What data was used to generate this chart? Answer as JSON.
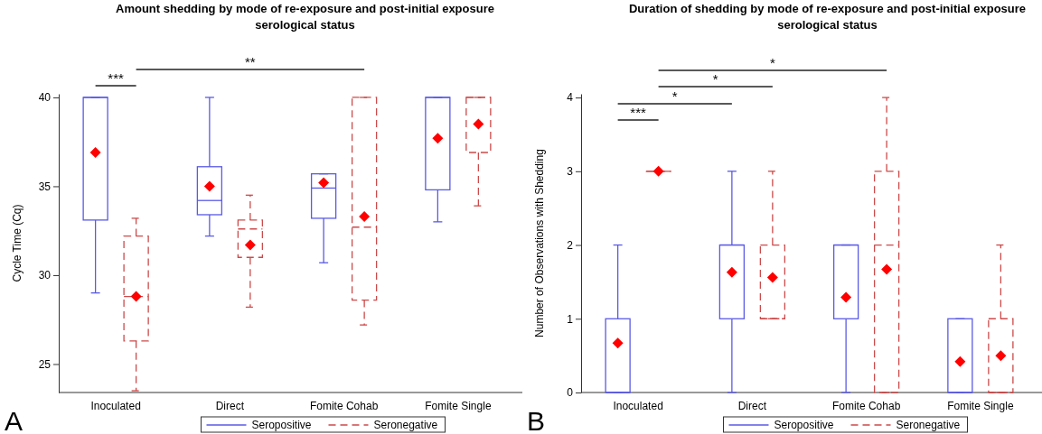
{
  "chart_data": [
    {
      "type": "box",
      "title": "Amount shedding by mode of re-exposure and post-initial exposure serological status",
      "ylabel": "Cycle Time (Cq)",
      "categories": [
        "Inoculated",
        "Direct",
        "Fomite Cohab",
        "Fomite Single"
      ],
      "ylim": [
        23.4,
        40.2
      ],
      "yticks": [
        25,
        30,
        35,
        40
      ],
      "legend": "bottom",
      "annotations": [
        "***",
        "**",
        "A"
      ],
      "series": [
        {
          "name": "Seropositive",
          "color": "#5a5ae6",
          "line_style": "solid",
          "boxes": [
            {
              "low": 29,
              "q1": 33.1,
              "median": 40,
              "q3": 40,
              "high": 40,
              "mean": 36.9
            },
            {
              "low": 32.2,
              "q1": 33.4,
              "median": 34.2,
              "q3": 36.1,
              "high": 40,
              "mean": 35.0
            },
            {
              "low": 30.7,
              "q1": 33.2,
              "median": 34.9,
              "q3": 35.7,
              "high": 35.7,
              "mean": 35.2
            },
            {
              "low": 33.0,
              "q1": 34.8,
              "median": 40,
              "q3": 40,
              "high": 40,
              "mean": 37.7
            }
          ]
        },
        {
          "name": "Seronegative",
          "color": "#cc4a4a",
          "line_style": "dashed",
          "boxes": [
            {
              "low": 23.5,
              "q1": 26.3,
              "median": 28.8,
              "q3": 32.2,
              "high": 33.2,
              "mean": 28.8
            },
            {
              "low": 28.2,
              "q1": 31.0,
              "median": 32.6,
              "q3": 33.1,
              "high": 34.5,
              "mean": 31.7
            },
            {
              "low": 27.2,
              "q1": 28.6,
              "median": 32.7,
              "q3": 40,
              "high": 40,
              "mean": 33.3
            },
            {
              "low": 33.9,
              "q1": 36.9,
              "median": 40,
              "q3": 40,
              "high": 40,
              "mean": 38.5
            }
          ]
        }
      ]
    },
    {
      "type": "box",
      "title": "Duration of shedding by mode of re-exposure and post-initial exposure serological status",
      "ylabel": "Number of Observations with Shedding",
      "categories": [
        "Inoculated",
        "Direct",
        "Fomite Cohab",
        "Fomite Single"
      ],
      "ylim": [
        0,
        4.05
      ],
      "yticks": [
        0,
        1,
        2,
        3,
        4
      ],
      "legend": "bottom",
      "annotations": [
        "***",
        "*",
        "*",
        "*",
        "B"
      ],
      "series": [
        {
          "name": "Seropositive",
          "color": "#5a5ae6",
          "line_style": "solid",
          "boxes": [
            {
              "low": 0,
              "q1": 0,
              "median": 0,
              "q3": 1,
              "high": 2,
              "mean": 0.67
            },
            {
              "low": 0,
              "q1": 1,
              "median": 2,
              "q3": 2,
              "high": 3,
              "mean": 1.63
            },
            {
              "low": 0,
              "q1": 1,
              "median": 2,
              "q3": 2,
              "high": 2,
              "mean": 1.29
            },
            {
              "low": 0,
              "q1": 0,
              "median": 0,
              "q3": 1,
              "high": 1,
              "mean": 0.42
            }
          ]
        },
        {
          "name": "Seronegative",
          "color": "#cc4a4a",
          "line_style": "dashed",
          "boxes": [
            {
              "low": 3,
              "q1": 3,
              "median": 3,
              "q3": 3,
              "high": 3,
              "mean": 3
            },
            {
              "low": 1,
              "q1": 1,
              "median": 1,
              "q3": 2,
              "high": 3,
              "mean": 1.56
            },
            {
              "low": 0,
              "q1": 0,
              "median": 2,
              "q3": 3,
              "high": 4,
              "mean": 1.67
            },
            {
              "low": 0,
              "q1": 0,
              "median": 0,
              "q3": 1,
              "high": 2,
              "mean": 0.5
            }
          ]
        }
      ]
    }
  ]
}
